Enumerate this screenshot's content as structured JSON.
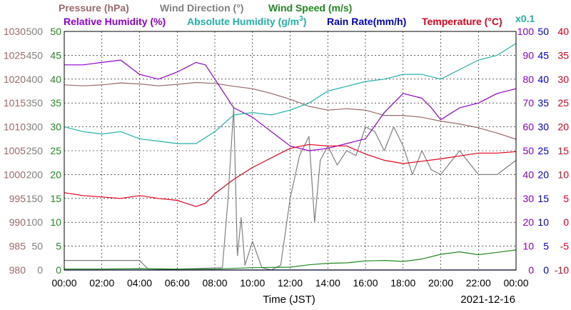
{
  "chart_data": {
    "type": "line",
    "legend": {
      "row1": [
        {
          "label": "Pressure (hPa)",
          "color": "#9a6a6a"
        },
        {
          "label": "Wind Direction (°)",
          "color": "#808080"
        },
        {
          "label": "Wind Speed (m/s)",
          "color": "#228b22"
        }
      ],
      "row2": [
        {
          "label": "Relative Humidity (%)",
          "color": "#9400d3"
        },
        {
          "label": "Absolute Humidity (g/m",
          "color": "#20b2aa"
        },
        {
          "label": "Rain Rate(mm/h)",
          "color": "#0000cd"
        },
        {
          "label": "Temperature (°C)",
          "color": "#e8001c"
        }
      ],
      "abs_humidity_superscript": "3",
      "abs_humidity_close": ")",
      "abs_humidity_scale": "x0.1"
    },
    "xlabel": "Time (JST)",
    "date": "2021-12-16",
    "x_ticks": [
      "00:00",
      "02:00",
      "04:00",
      "06:00",
      "08:00",
      "10:00",
      "12:00",
      "14:00",
      "16:00",
      "18:00",
      "20:00",
      "22:00",
      "00:00"
    ],
    "axes": {
      "pressure": {
        "ticks": [
          "1030",
          "1025",
          "1020",
          "1015",
          "1010",
          "1005",
          "1000",
          "995",
          "990",
          "985",
          "980"
        ],
        "color": "#9a6a6a",
        "range": [
          980,
          1030
        ]
      },
      "wind_direction": {
        "ticks": [
          "500",
          "450",
          "400",
          "350",
          "300",
          "250",
          "200",
          "150",
          "100",
          "50",
          "0"
        ],
        "color": "#808080",
        "range": [
          0,
          500
        ]
      },
      "wind_speed": {
        "ticks": [
          "50",
          "45",
          "40",
          "35",
          "30",
          "25",
          "20",
          "15",
          "10",
          "5",
          "0"
        ],
        "color": "#228b22",
        "range": [
          0,
          50
        ]
      },
      "humidity": {
        "ticks": [
          "100",
          "90",
          "80",
          "70",
          "60",
          "50",
          "40",
          "30",
          "20",
          "10",
          "0"
        ],
        "color": "#9400d3",
        "range": [
          0,
          100
        ]
      },
      "rain_rate": {
        "ticks": [
          "50",
          "45",
          "40",
          "35",
          "30",
          "25",
          "20",
          "15",
          "10",
          "5",
          "0"
        ],
        "color": "#0000cd",
        "range": [
          0,
          50
        ]
      },
      "temperature": {
        "ticks": [
          "40",
          "35",
          "30",
          "25",
          "20",
          "15",
          "10",
          "5",
          "0",
          "-5",
          "-10"
        ],
        "color": "#e8001c",
        "range": [
          -10,
          40
        ]
      }
    },
    "x_range_hours": [
      0,
      24
    ],
    "grid": true,
    "series": [
      {
        "name": "Pressure (hPa)",
        "axis": "pressure",
        "color": "#9a6a6a",
        "x": [
          0,
          1,
          2,
          3,
          4,
          5,
          6,
          7,
          8,
          9,
          10,
          11,
          12,
          13,
          14,
          15,
          16,
          17,
          18,
          19,
          20,
          21,
          22,
          23,
          24
        ],
        "y": [
          1018.8,
          1018.6,
          1018.8,
          1019.2,
          1019.0,
          1018.6,
          1018.9,
          1019.3,
          1019.1,
          1018.5,
          1018.0,
          1017.0,
          1015.8,
          1014.3,
          1013.5,
          1013.8,
          1013.5,
          1012.4,
          1012.4,
          1012.0,
          1011.2,
          1010.6,
          1009.8,
          1008.7,
          1007.4
        ]
      },
      {
        "name": "Wind Direction (°)",
        "axis": "wind_direction",
        "color": "#808080",
        "x": [
          0,
          4,
          4.5,
          8.4,
          8.7,
          9,
          9.2,
          9.4,
          9.6,
          10,
          10.5,
          11,
          11.5,
          12,
          12.5,
          13,
          13.3,
          13.6,
          14,
          14.5,
          15,
          15.5,
          16,
          16.5,
          17,
          17.5,
          18,
          18.5,
          19,
          19.5,
          20,
          21,
          22,
          23,
          24
        ],
        "y": [
          20,
          20,
          0,
          5,
          150,
          340,
          30,
          110,
          10,
          60,
          5,
          0,
          10,
          150,
          240,
          280,
          100,
          230,
          260,
          220,
          250,
          240,
          300,
          290,
          250,
          300,
          260,
          200,
          250,
          210,
          200,
          250,
          200,
          200,
          230
        ]
      },
      {
        "name": "Wind Speed (m/s)",
        "axis": "wind_speed",
        "color": "#228b22",
        "x": [
          0,
          2,
          4,
          6,
          8,
          10,
          12,
          13,
          14,
          15,
          16,
          17,
          18,
          19,
          20,
          21,
          22,
          23,
          24
        ],
        "y": [
          0.2,
          0.2,
          0.3,
          0.2,
          0.2,
          0.5,
          0.6,
          1.1,
          1.4,
          1.5,
          1.9,
          2.0,
          1.8,
          2.3,
          3.3,
          3.8,
          3.2,
          3.7,
          4.2
        ]
      },
      {
        "name": "Relative Humidity (%)",
        "axis": "humidity",
        "color": "#9400d3",
        "x": [
          0,
          1,
          2,
          3,
          4,
          5,
          6,
          7,
          7.5,
          8,
          9,
          10,
          11,
          12,
          13,
          14,
          15,
          16,
          17,
          18,
          19,
          19.5,
          20,
          21,
          22,
          23,
          24
        ],
        "y": [
          86,
          86,
          87,
          88,
          82,
          80,
          83,
          87,
          86,
          80,
          68,
          64,
          58,
          52,
          50,
          51,
          53,
          55,
          66,
          74,
          72,
          68,
          63,
          68,
          70,
          74,
          76
        ]
      },
      {
        "name": "Absolute Humidity (g/m3)",
        "axis": "humidity",
        "color": "#20b2aa",
        "x": [
          0,
          1,
          2,
          3,
          4,
          5,
          6,
          7,
          8,
          9,
          10,
          11,
          12,
          13,
          14,
          15,
          16,
          17,
          18,
          19,
          20,
          21,
          22,
          23,
          24
        ],
        "y": [
          60,
          58,
          57,
          58,
          55,
          54,
          53,
          53,
          58,
          65,
          66,
          65,
          67,
          70,
          75,
          77,
          79,
          80,
          82,
          82,
          80,
          84,
          88,
          90,
          95
        ]
      },
      {
        "name": "Rain Rate(mm/h)",
        "axis": "rain_rate",
        "color": "#0000cd",
        "x": [
          0,
          24
        ],
        "y": [
          0,
          0
        ]
      },
      {
        "name": "Temperature (°C)",
        "axis": "temperature",
        "color": "#e8001c",
        "x": [
          0,
          1,
          2,
          3,
          4,
          5,
          6,
          7,
          7.5,
          8,
          9,
          10,
          11,
          12,
          13,
          14,
          15,
          16,
          17,
          18,
          19,
          20,
          21,
          22,
          23,
          24
        ],
        "y": [
          6.2,
          5.6,
          5.3,
          5.0,
          5.6,
          5.0,
          4.6,
          3.3,
          4.0,
          6.0,
          9.0,
          11.5,
          13.5,
          15.5,
          16.3,
          16.0,
          16.0,
          14.3,
          13.0,
          12.3,
          12.8,
          13.3,
          13.9,
          14.5,
          14.5,
          14.8
        ]
      }
    ]
  }
}
